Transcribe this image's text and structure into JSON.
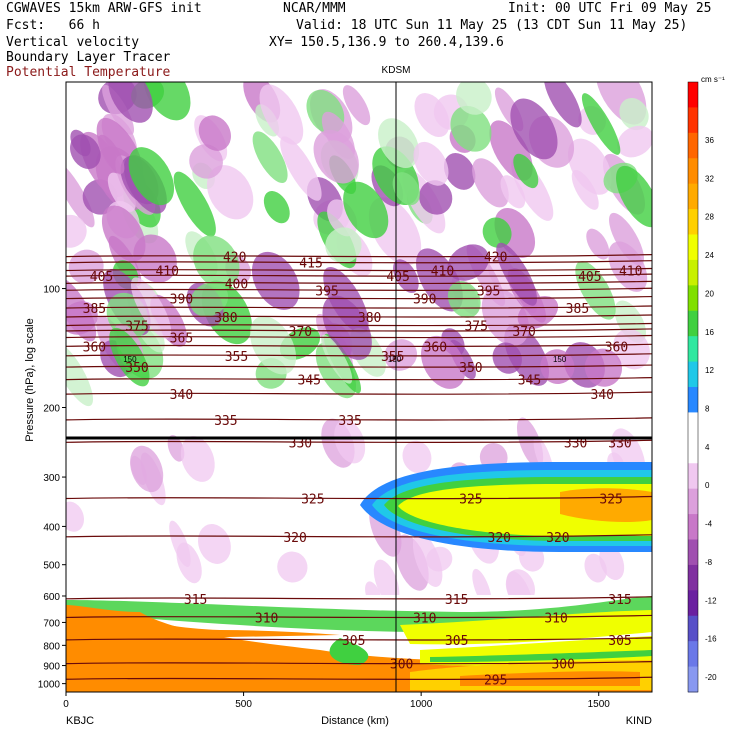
{
  "header": {
    "model": "CGWAVES 15km ARW-GFS init",
    "org": "NCAR/MMM",
    "init": "Init: 00 UTC Fri 09 May 25",
    "fcst": "Fcst:   66 h",
    "valid": "Valid: 18 UTC Sun 11 May 25 (13 CDT Sun 11 May 25)",
    "field1": "Vertical velocity",
    "field2": "Boundary Layer Tracer",
    "field3": "Potential Temperature",
    "xy": "XY= 150.5,136.9 to 260.4,139.6"
  },
  "colors": {
    "field3": "#8b1a1a",
    "theta_contour": "#6a0a0a",
    "tropopause_line": "#000000"
  },
  "chart_data": {
    "type": "heatmap",
    "title": "",
    "xlabel": "Distance (km)",
    "ylabel": "Pressure (hPa), log scale",
    "y_scale": "log",
    "xlim": [
      0,
      1650
    ],
    "ylim": [
      1050,
      30
    ],
    "x_ticks": [
      0,
      500,
      1000,
      1500
    ],
    "y_ticks": [
      100,
      200,
      300,
      400,
      500,
      600,
      700,
      800,
      900,
      1000
    ],
    "station_left": "KBJC",
    "station_right": "KIND",
    "station_mid": "KDSM",
    "station_mid_x": 930,
    "colorbar": {
      "unit": "cm s⁻¹",
      "labels": [
        36,
        32,
        28,
        24,
        20,
        16,
        12,
        8,
        4,
        0,
        -4,
        -8,
        -12,
        -16,
        -20
      ],
      "colors": [
        "#ff0000",
        "#ff3300",
        "#ff6600",
        "#ff8c00",
        "#ffaa00",
        "#ffd000",
        "#f0ff00",
        "#c8f000",
        "#80e000",
        "#40d040",
        "#30e8a0",
        "#20c8e8",
        "#2888ff",
        "#ffffff",
        "#ffffff",
        "#f0c8f0",
        "#dca0dc",
        "#c878c8",
        "#a050b0",
        "#8030a0",
        "#6a20a0",
        "#5850c8",
        "#6a78e8",
        "#8898f0"
      ]
    },
    "theta_contours": [
      {
        "value": 300,
        "x": 945
      },
      {
        "value": 295,
        "x": 1210
      },
      {
        "value": 305,
        "x": 810
      },
      {
        "value": 305,
        "x": 1100
      },
      {
        "value": 305,
        "x": 1560
      },
      {
        "value": 300,
        "x": 1400
      },
      {
        "value": 310,
        "x": 565
      },
      {
        "value": 310,
        "x": 1010
      },
      {
        "value": 310,
        "x": 1380
      },
      {
        "value": 315,
        "x": 365
      },
      {
        "value": 315,
        "x": 1100
      },
      {
        "value": 315,
        "x": 1560
      },
      {
        "value": 320,
        "x": 645
      },
      {
        "value": 320,
        "x": 1220
      },
      {
        "value": 320,
        "x": 1385
      },
      {
        "value": 325,
        "x": 695
      },
      {
        "value": 325,
        "x": 1140
      },
      {
        "value": 325,
        "x": 1535
      },
      {
        "value": 330,
        "x": 660
      },
      {
        "value": 330,
        "x": 1435
      },
      {
        "value": 330,
        "x": 1560
      },
      {
        "value": 335,
        "x": 450
      },
      {
        "value": 335,
        "x": 800
      },
      {
        "value": 340,
        "x": 325
      },
      {
        "value": 340,
        "x": 1510
      },
      {
        "value": 345,
        "x": 685
      },
      {
        "value": 345,
        "x": 1305
      },
      {
        "value": 350,
        "x": 200
      },
      {
        "value": 350,
        "x": 1140
      },
      {
        "value": 355,
        "x": 480
      },
      {
        "value": 355,
        "x": 920
      },
      {
        "value": 360,
        "x": 80
      },
      {
        "value": 360,
        "x": 1040
      },
      {
        "value": 360,
        "x": 1550
      },
      {
        "value": 365,
        "x": 325
      },
      {
        "value": 370,
        "x": 660
      },
      {
        "value": 370,
        "x": 1290
      },
      {
        "value": 375,
        "x": 200
      },
      {
        "value": 375,
        "x": 1155
      },
      {
        "value": 380,
        "x": 450
      },
      {
        "value": 380,
        "x": 855
      },
      {
        "value": 385,
        "x": 80
      },
      {
        "value": 385,
        "x": 1440
      },
      {
        "value": 390,
        "x": 325
      },
      {
        "value": 390,
        "x": 1010
      },
      {
        "value": 395,
        "x": 735
      },
      {
        "value": 395,
        "x": 1190
      },
      {
        "value": 400,
        "x": 480
      },
      {
        "value": 405,
        "x": 100
      },
      {
        "value": 405,
        "x": 935
      },
      {
        "value": 405,
        "x": 1475
      },
      {
        "value": 410,
        "x": 285
      },
      {
        "value": 410,
        "x": 1060
      },
      {
        "value": 410,
        "x": 1590
      },
      {
        "value": 415,
        "x": 690
      },
      {
        "value": 420,
        "x": 475
      },
      {
        "value": 420,
        "x": 1210
      }
    ],
    "marker_150": [
      {
        "label": "150",
        "x": 180
      },
      {
        "label": "150",
        "x": 925
      },
      {
        "label": "150",
        "x": 1390
      }
    ],
    "grid": false,
    "legend": "colorbar-right"
  }
}
